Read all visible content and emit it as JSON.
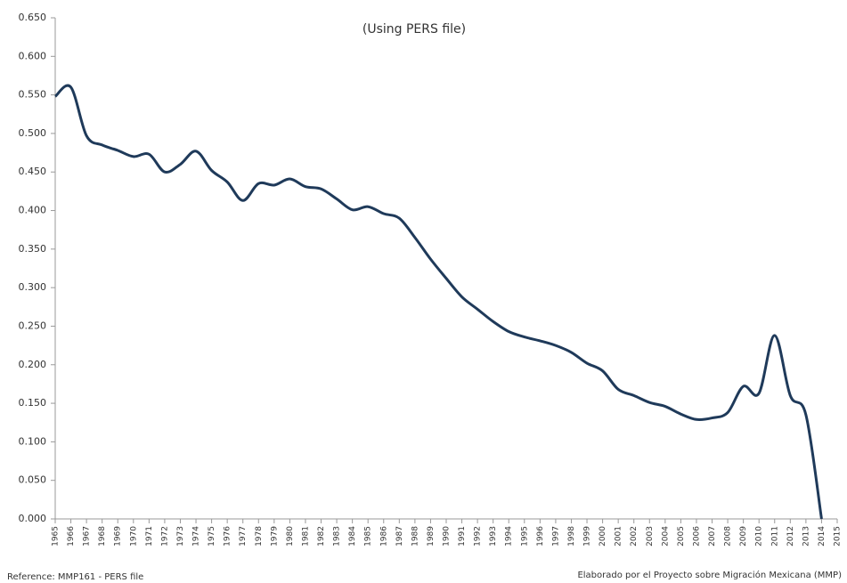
{
  "chart_data": {
    "type": "line",
    "subtitle": "(Using PERS file)",
    "x": [
      1965,
      1966,
      1967,
      1968,
      1969,
      1970,
      1971,
      1972,
      1973,
      1974,
      1975,
      1976,
      1977,
      1978,
      1979,
      1980,
      1981,
      1982,
      1983,
      1984,
      1985,
      1986,
      1987,
      1988,
      1989,
      1990,
      1991,
      1992,
      1993,
      1994,
      1995,
      1996,
      1997,
      1998,
      1999,
      2000,
      2001,
      2002,
      2003,
      2004,
      2005,
      2006,
      2007,
      2008,
      2009,
      2010,
      2011,
      2012,
      2013,
      2014
    ],
    "series": [
      {
        "color": "#1f3a5a",
        "values": [
          0.548,
          0.56,
          0.497,
          0.485,
          0.478,
          0.47,
          0.473,
          0.45,
          0.46,
          0.477,
          0.452,
          0.437,
          0.413,
          0.435,
          0.433,
          0.441,
          0.431,
          0.428,
          0.415,
          0.401,
          0.405,
          0.396,
          0.39,
          0.365,
          0.337,
          0.312,
          0.288,
          0.272,
          0.256,
          0.243,
          0.236,
          0.231,
          0.225,
          0.216,
          0.202,
          0.192,
          0.168,
          0.16,
          0.151,
          0.146,
          0.136,
          0.129,
          0.131,
          0.138,
          0.172,
          0.163,
          0.238,
          0.16,
          0.135,
          0
        ]
      }
    ],
    "xlim": [
      1965,
      2015
    ],
    "xticks": [
      1965,
      1966,
      1967,
      1968,
      1969,
      1970,
      1971,
      1972,
      1973,
      1974,
      1975,
      1976,
      1977,
      1978,
      1979,
      1980,
      1981,
      1982,
      1983,
      1984,
      1985,
      1986,
      1987,
      1988,
      1989,
      1990,
      1991,
      1992,
      1993,
      1994,
      1995,
      1996,
      1997,
      1998,
      1999,
      2000,
      2001,
      2002,
      2003,
      2004,
      2005,
      2006,
      2007,
      2008,
      2009,
      2010,
      2011,
      2012,
      2013,
      2014,
      2015
    ],
    "ylim": [
      0,
      0.65
    ],
    "yticks": [
      {
        "value": 0,
        "label": "0.000"
      },
      {
        "value": 0.05,
        "label": "0.050"
      },
      {
        "value": 0.1,
        "label": "0.100"
      },
      {
        "value": 0.15,
        "label": "0.150"
      },
      {
        "value": 0.2,
        "label": "0.200"
      },
      {
        "value": 0.25,
        "label": "0.250"
      },
      {
        "value": 0.3,
        "label": "0.300"
      },
      {
        "value": 0.35,
        "label": "0.350"
      },
      {
        "value": 0.4,
        "label": "0.400"
      },
      {
        "value": 0.45,
        "label": "0.450"
      },
      {
        "value": 0.5,
        "label": "0.500"
      },
      {
        "value": 0.55,
        "label": "0.550"
      },
      {
        "value": 0.6,
        "label": "0.600"
      },
      {
        "value": 0.65,
        "label": "0.650"
      }
    ],
    "annotations": [
      "Reference: MMP161 - PERS file",
      "Elaborado por el Proyecto sobre Migración Mexicana (MMP)"
    ]
  }
}
